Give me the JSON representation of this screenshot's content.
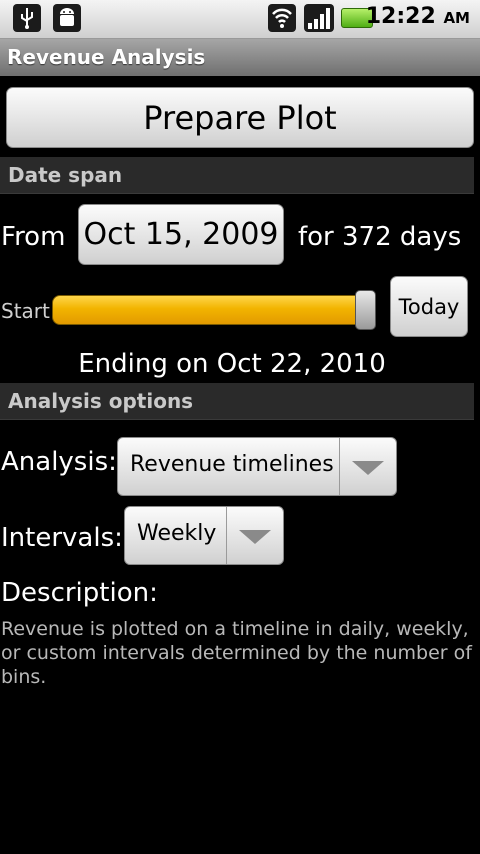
{
  "status_bar": {
    "icons": [
      "usb-icon",
      "android-debug-icon",
      "wifi-icon",
      "signal-icon",
      "battery-icon"
    ],
    "time": "12:22",
    "ampm": "AM"
  },
  "title": "Revenue Analysis",
  "prepare_plot_label": "Prepare Plot",
  "date_span": {
    "header": "Date span",
    "from_label": "From",
    "from_date": "Oct 15, 2009",
    "duration_text": "for 372 days",
    "start_label": "Start",
    "slider_value_fraction": 0.97,
    "today_label": "Today",
    "ending_text": "Ending on Oct 22, 2010"
  },
  "analysis_options": {
    "header": "Analysis options",
    "analysis_label": "Analysis:",
    "analysis_value": "Revenue timelines",
    "intervals_label": "Intervals:",
    "intervals_value": "Weekly",
    "description_label": "Description:",
    "description_text": "Revenue is plotted on a timeline in daily, weekly, or custom intervals determined by the number of bins."
  },
  "colors": {
    "slider_fill": "#f2b400",
    "section_header_bg": "#2a2a2a",
    "title_bar_bg": "#8a8a8a"
  }
}
